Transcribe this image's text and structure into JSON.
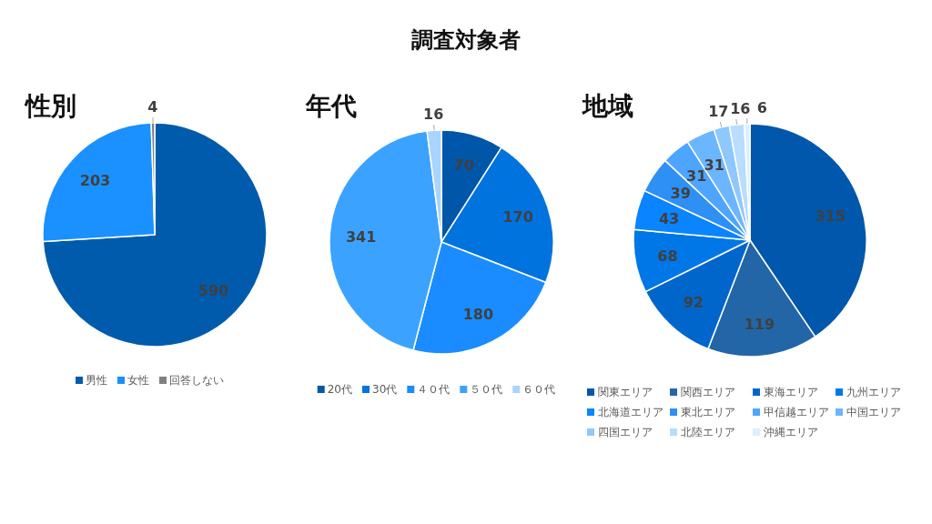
{
  "chart_data": [
    {
      "type": "pie",
      "title": "性別",
      "annotations": [
        "調査対象者"
      ],
      "categories": [
        "男性",
        "女性",
        "回答しない"
      ],
      "values": [
        590,
        203,
        4
      ],
      "colors": [
        "#005bac",
        "#1a91ff",
        "#808080"
      ],
      "data_labels": true,
      "legend": "bottom"
    },
    {
      "type": "pie",
      "title": "年代",
      "categories": [
        "20代",
        "30代",
        "４０代",
        "５０代",
        "６０代"
      ],
      "values": [
        70,
        170,
        180,
        341,
        16
      ],
      "colors": [
        "#0056a8",
        "#0073de",
        "#1a8cff",
        "#3ba3ff",
        "#a8d4ff"
      ],
      "data_labels": true,
      "legend": "bottom"
    },
    {
      "type": "pie",
      "title": "地域",
      "categories": [
        "関東エリア",
        "関西エリア",
        "東海エリア",
        "九州エリア",
        "北海道エリア",
        "東北エリア",
        "甲信越エリア",
        "中国エリア",
        "四国エリア",
        "北陸エリア",
        "沖縄エリア"
      ],
      "values": [
        315,
        119,
        92,
        68,
        43,
        39,
        31,
        31,
        17,
        16,
        6
      ],
      "colors": [
        "#0057ab",
        "#2266a8",
        "#0066cc",
        "#0077e6",
        "#0a84ff",
        "#2e90f5",
        "#4ea5ff",
        "#6cb6ff",
        "#8ec8ff",
        "#b8ddff",
        "#ddeeff"
      ],
      "data_labels": true,
      "legend": "bottom"
    }
  ]
}
